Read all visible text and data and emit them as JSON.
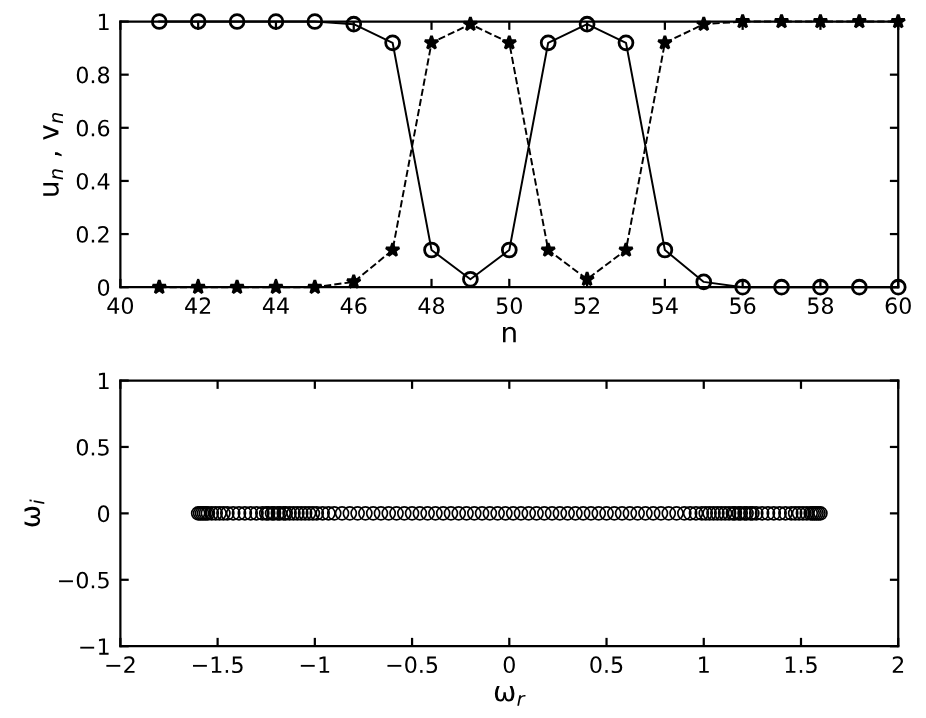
{
  "chart_data": [
    {
      "type": "line",
      "xlabel": "n",
      "ylabel": "u$_{n}$ , v$_{n}$",
      "x": [
        41,
        42,
        43,
        44,
        45,
        46,
        47,
        48,
        49,
        50,
        51,
        52,
        53,
        54,
        55,
        56,
        57,
        58,
        59,
        60
      ],
      "series": [
        {
          "color": "#000000",
          "marker": "circle",
          "line_style": "solid",
          "values": [
            1,
            1,
            1,
            1,
            1,
            0.99,
            0.92,
            0.14,
            0.03,
            0.14,
            0.92,
            0.99,
            0.92,
            0.14,
            0.02,
            0,
            0,
            0,
            0,
            0
          ]
        },
        {
          "color": "#000000",
          "marker": "star",
          "line_style": "dashed",
          "values": [
            0,
            0,
            0,
            0,
            0,
            0.02,
            0.14,
            0.92,
            0.99,
            0.92,
            0.14,
            0.03,
            0.14,
            0.92,
            0.99,
            1,
            1,
            1,
            1,
            1
          ]
        }
      ],
      "xlim": [
        40,
        60
      ],
      "xticks": [
        40,
        42,
        44,
        46,
        48,
        50,
        52,
        54,
        56,
        58,
        60
      ],
      "ylim": [
        0,
        1
      ],
      "yticks": [
        0,
        {
          "value": 0.2,
          "label": "0.2"
        },
        {
          "value": 0.4,
          "label": "0.4"
        },
        {
          "value": 0.6,
          "label": "0.6"
        },
        {
          "value": 0.8,
          "label": "0.8"
        },
        1
      ],
      "grid": false,
      "legend": false
    },
    {
      "type": "scatter",
      "xlabel": "ω$_{r}$",
      "ylabel": "ω$_{i}$",
      "x": [
        -1.6,
        -1.59,
        -1.58,
        -1.57,
        -1.56,
        -1.55,
        -1.53,
        -1.51,
        -1.49,
        -1.47,
        -1.45,
        -1.42,
        -1.39,
        -1.36,
        -1.33,
        -1.3,
        -1.27,
        -1.25,
        -1.24,
        -1.22,
        -1.21,
        -1.19,
        -1.18,
        -1.16,
        -1.15,
        -1.13,
        -1.11,
        -1.09,
        -1.07,
        -1.05,
        -1.03,
        -1.01,
        -0.99,
        -0.96,
        -0.93,
        -0.9,
        -0.86,
        -0.82,
        -0.78,
        -0.74,
        -0.7,
        -0.66,
        -0.62,
        -0.58,
        -0.54,
        -0.5,
        -0.46,
        -0.42,
        -0.38,
        -0.34,
        -0.3,
        -0.26,
        -0.22,
        -0.18,
        -0.14,
        -0.1,
        -0.06,
        -0.02,
        0.02,
        0.06,
        0.1,
        0.14,
        0.18,
        0.22,
        0.26,
        0.3,
        0.34,
        0.38,
        0.42,
        0.46,
        0.5,
        0.54,
        0.58,
        0.62,
        0.66,
        0.7,
        0.74,
        0.78,
        0.82,
        0.86,
        0.9,
        0.93,
        0.96,
        0.99,
        1.01,
        1.03,
        1.05,
        1.07,
        1.09,
        1.11,
        1.13,
        1.15,
        1.16,
        1.18,
        1.19,
        1.21,
        1.22,
        1.24,
        1.25,
        1.27,
        1.3,
        1.33,
        1.36,
        1.39,
        1.42,
        1.45,
        1.47,
        1.49,
        1.51,
        1.53,
        1.55,
        1.56,
        1.57,
        1.58,
        1.59,
        1.6
      ],
      "series": [
        {
          "color": "#000000",
          "marker": "circle",
          "values": [
            0,
            0,
            0,
            0,
            0,
            0,
            0,
            0,
            0,
            0,
            0,
            0,
            0,
            0,
            0,
            0,
            0,
            0,
            0,
            0,
            0,
            0,
            0,
            0,
            0,
            0,
            0,
            0,
            0,
            0,
            0,
            0,
            0,
            0,
            0,
            0,
            0,
            0,
            0,
            0,
            0,
            0,
            0,
            0,
            0,
            0,
            0,
            0,
            0,
            0,
            0,
            0,
            0,
            0,
            0,
            0,
            0,
            0,
            0,
            0,
            0,
            0,
            0,
            0,
            0,
            0,
            0,
            0,
            0,
            0,
            0,
            0,
            0,
            0,
            0,
            0,
            0,
            0,
            0,
            0,
            0,
            0,
            0,
            0,
            0,
            0,
            0,
            0,
            0,
            0,
            0,
            0,
            0,
            0,
            0,
            0,
            0,
            0,
            0,
            0,
            0,
            0,
            0,
            0,
            0,
            0,
            0,
            0,
            0,
            0,
            0,
            0,
            0,
            0,
            0,
            0
          ]
        }
      ],
      "xlim": [
        -2,
        2
      ],
      "xticks": [
        {
          "value": -2,
          "label": "−2"
        },
        {
          "value": -1.5,
          "label": "−1.5"
        },
        {
          "value": -1,
          "label": "−1"
        },
        {
          "value": -0.5,
          "label": "−0.5"
        },
        0,
        {
          "value": 0.5,
          "label": "0.5"
        },
        1,
        {
          "value": 1.5,
          "label": "1.5"
        },
        2
      ],
      "ylim": [
        -1,
        1
      ],
      "yticks": [
        {
          "value": -1,
          "label": "−1"
        },
        {
          "value": -0.5,
          "label": "−0.5"
        },
        0,
        {
          "value": 0.5,
          "label": "0.5"
        },
        1
      ],
      "grid": false,
      "legend": false
    }
  ]
}
